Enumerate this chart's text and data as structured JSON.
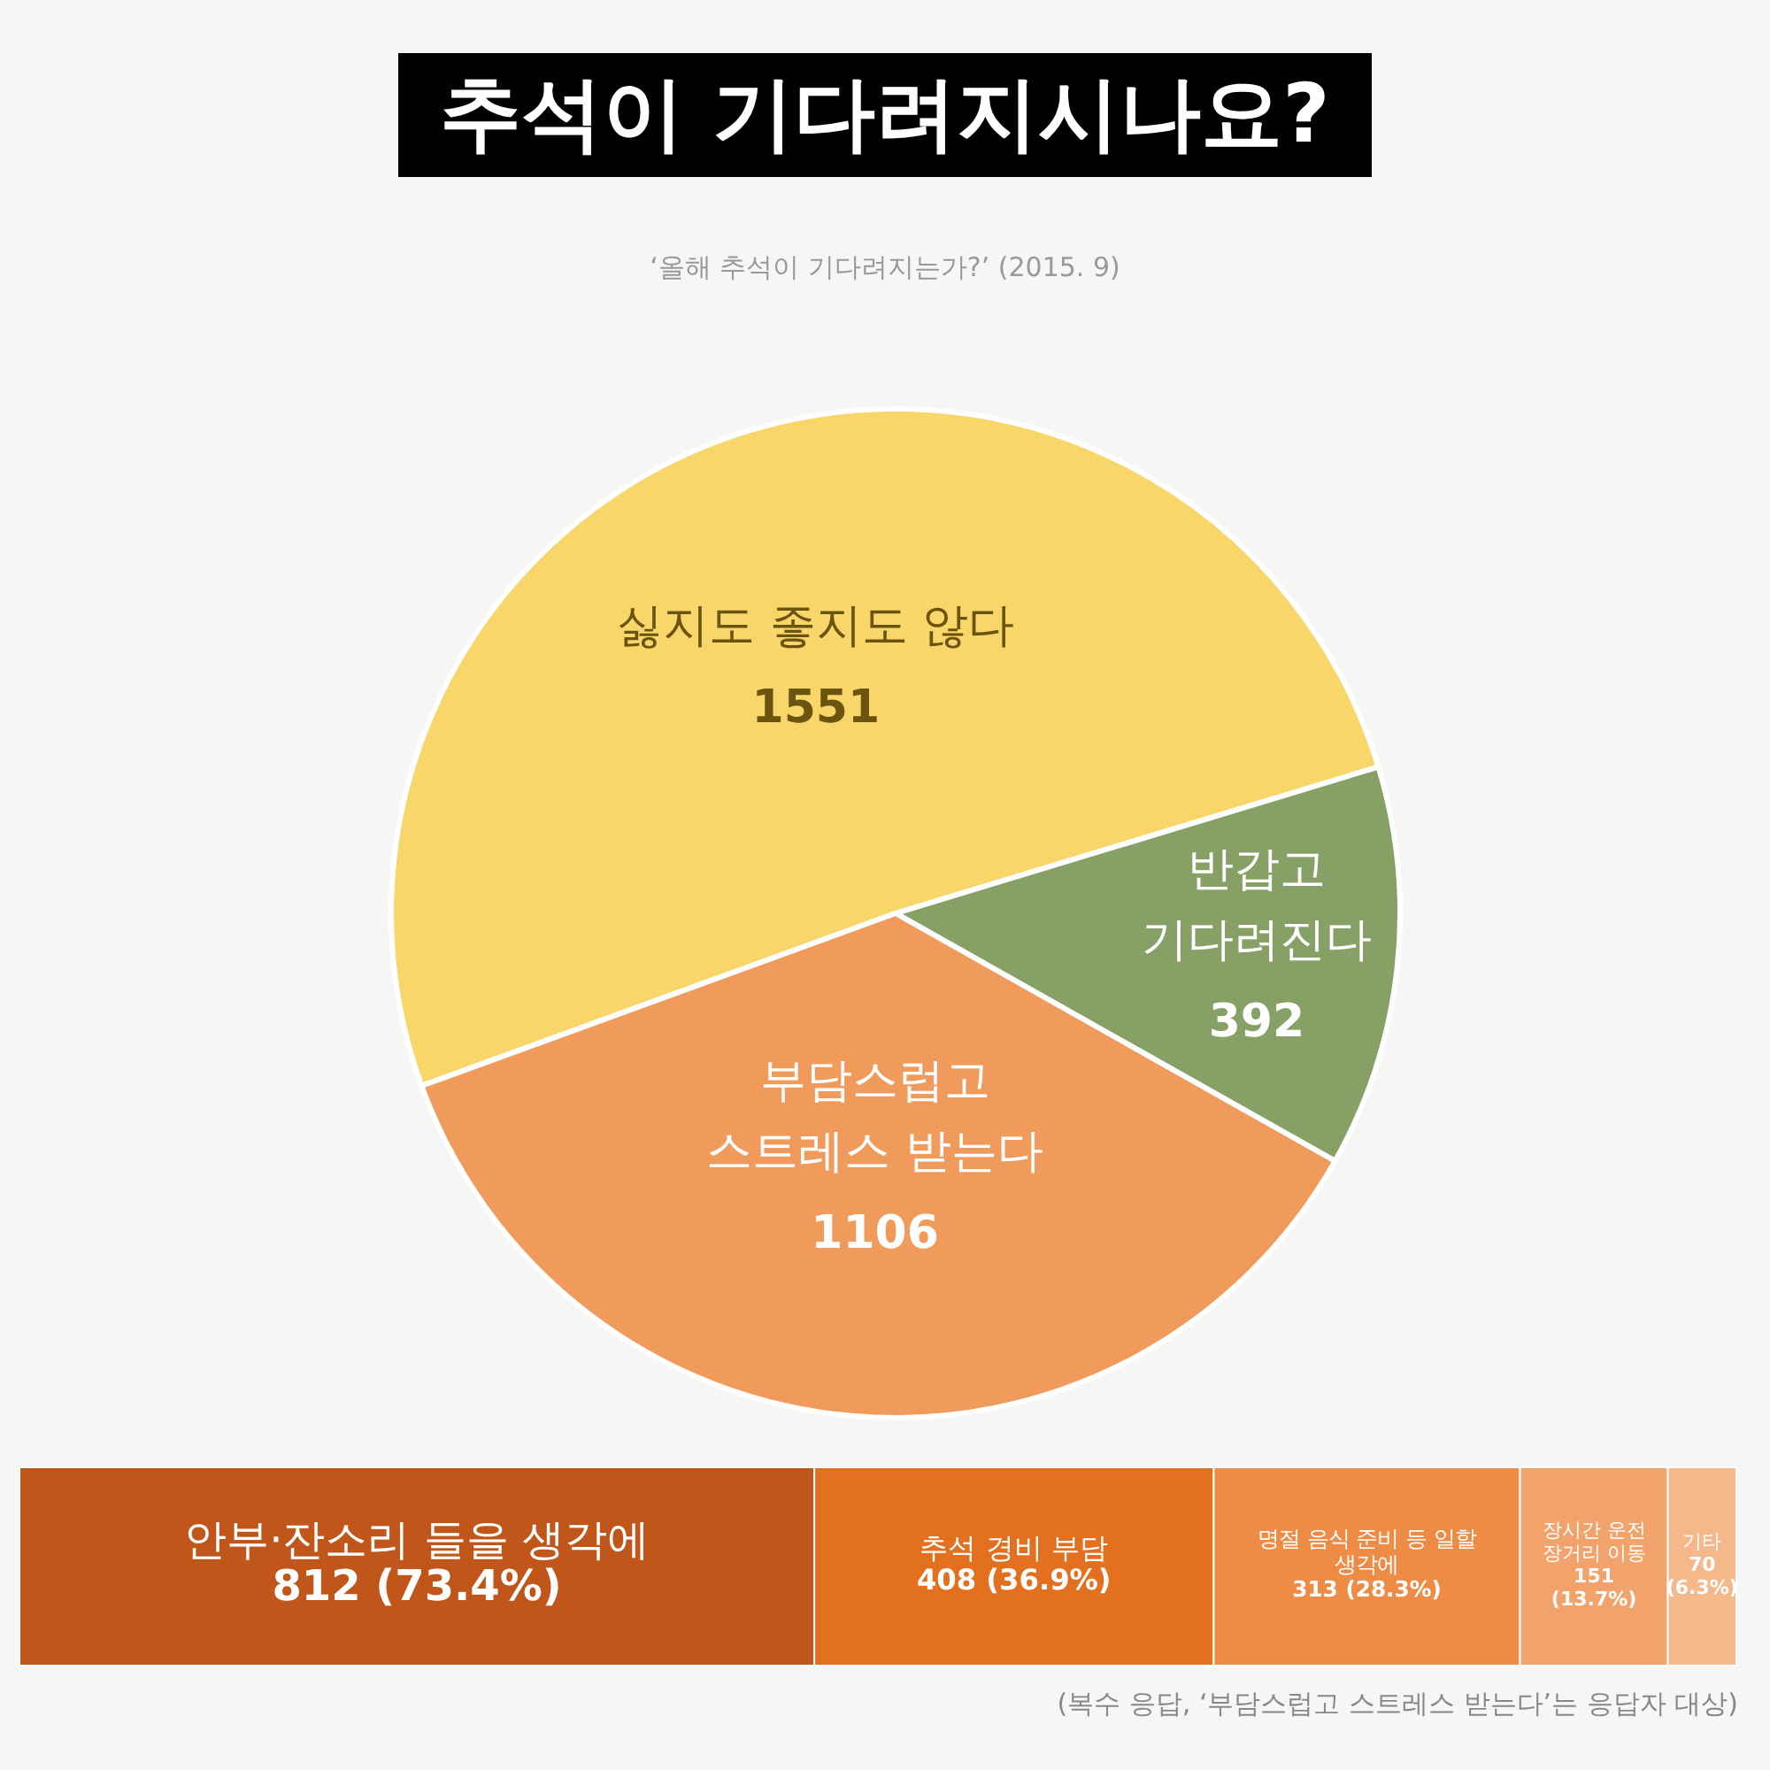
{
  "chart_data": [
    {
      "type": "pie",
      "title": "추석이 기다려지시나요?",
      "subtitle": "‘올해 추석이 기다려지는가?’ (2015. 9)",
      "categories": [
        "싫지도 좋지도 않다",
        "반갑고 기다려진다",
        "부담스럽고 스트레스 받는다"
      ],
      "values": [
        1551,
        392,
        1106
      ],
      "colors": [
        "#f8d66a",
        "#86a065",
        "#f09b5c"
      ],
      "data_labels": true
    },
    {
      "type": "bar",
      "stacked": true,
      "orientation": "horizontal",
      "categories": [
        null
      ],
      "tick_labels": false,
      "series": [
        {
          "name": "안부·잔소리 들을 생각에",
          "color": "#c0561a",
          "values": [
            812
          ],
          "value_labels": [
            "812 (73.4%)"
          ]
        },
        {
          "name": "추석 경비 부담",
          "color": "#e2701f",
          "values": [
            408
          ],
          "value_labels": [
            "408 (36.9%)"
          ]
        },
        {
          "name": "명절 음식 준비 등 일할 생각에",
          "color": "#ee8b44",
          "values": [
            313
          ],
          "value_labels": [
            "313 (28.3%)"
          ]
        },
        {
          "name": "장시간 운전 장거리 이동",
          "color": "#f2a36b",
          "values": [
            151
          ],
          "value_labels": [
            "151 (13.7%)"
          ]
        },
        {
          "name": "기타",
          "color": "#f5b88a",
          "values": [
            70
          ],
          "value_labels": [
            "70 (6.3%)"
          ]
        }
      ],
      "annotations": [
        "(복수 응답, ‘부담스럽고 스트레스 받는다’는 응답자 대상)"
      ]
    }
  ]
}
